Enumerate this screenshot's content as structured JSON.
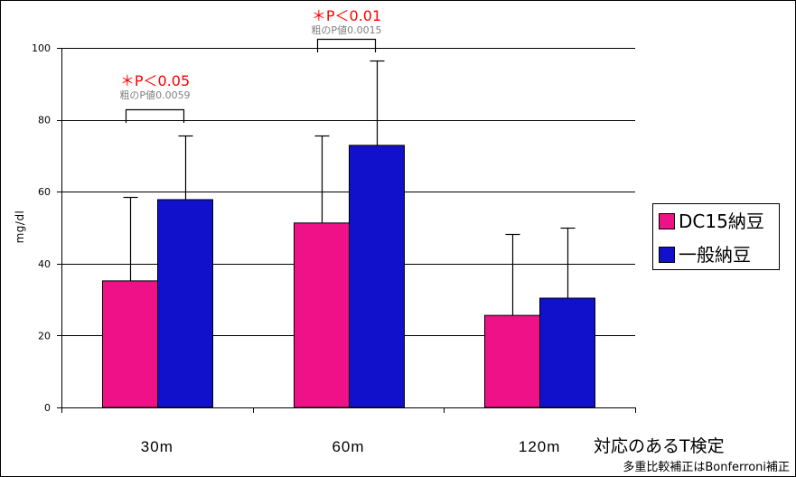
{
  "chart_data": {
    "type": "bar",
    "categories": [
      "30m",
      "60m",
      "120m"
    ],
    "series": [
      {
        "name": "DC15納豆",
        "color": "#EE1188",
        "values": [
          35.2,
          51.3,
          25.6
        ],
        "errors": [
          23.3,
          24.3,
          22.6
        ]
      },
      {
        "name": "一般納豆",
        "color": "#1111CC",
        "values": [
          57.8,
          72.9,
          30.4
        ],
        "errors": [
          17.8,
          23.6,
          19.6
        ]
      }
    ],
    "ylabel": "mg/dl",
    "ylim": [
      0,
      100
    ],
    "yticks": [
      0,
      20,
      40,
      60,
      80,
      100
    ],
    "grid": true,
    "legend": "right",
    "annotations": [
      {
        "category": "30m",
        "label": "＊P＜0.05",
        "detail": "粗のP値0.0059",
        "color": "#FF0000",
        "detail_color": "#808080"
      },
      {
        "category": "60m",
        "label": "＊P＜0.01",
        "detail": "粗のP値0.0015",
        "color": "#FF0000",
        "detail_color": "#808080"
      }
    ]
  },
  "notes": {
    "test": "対応のあるT検定",
    "correction": "多重比較補正はBonferroni補正"
  }
}
